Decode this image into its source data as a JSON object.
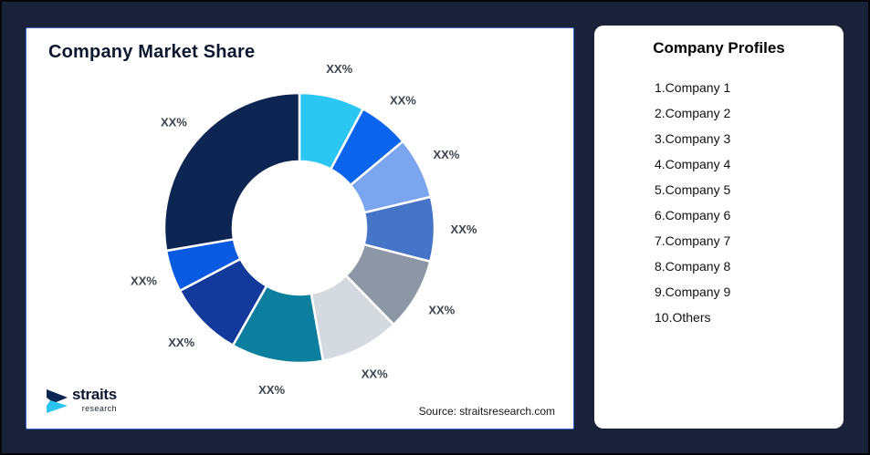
{
  "colors": {
    "background": "#1A2239",
    "outer_border": "#04060C",
    "chart_card_border": "#3B66D1",
    "card_background": "#FFFFFF",
    "title_text": "#0D1830",
    "segment_label_text": "#3C434E",
    "list_text": "#111111",
    "logo_navy": "#0D2552",
    "logo_cyan": "#29C5F0"
  },
  "chart_data": {
    "type": "pie",
    "subtype": "donut",
    "title": "Company Market Share",
    "source": "Source: straitsresearch.com",
    "start_angle_deg": 0,
    "direction": "clockwise",
    "inner_radius_ratio": 0.49,
    "legend_position": "none",
    "segments": [
      {
        "label": "XX%",
        "share_pct": 7.8,
        "color": "#2BC6F2"
      },
      {
        "label": "XX%",
        "share_pct": 6.1,
        "color": "#0A64EC"
      },
      {
        "label": "XX%",
        "share_pct": 7.4,
        "color": "#7CA5F0"
      },
      {
        "label": "XX%",
        "share_pct": 7.7,
        "color": "#4674C6"
      },
      {
        "label": "XX%",
        "share_pct": 8.7,
        "color": "#8D96A4"
      },
      {
        "label": "XX%",
        "share_pct": 9.5,
        "color": "#D5D9E0"
      },
      {
        "label": "XX%",
        "share_pct": 11.0,
        "color": "#0C7F9E"
      },
      {
        "label": "XX%",
        "share_pct": 9.1,
        "color": "#12399B"
      },
      {
        "label": "XX%",
        "share_pct": 5.0,
        "color": "#0B5AE2"
      },
      {
        "label": "XX%",
        "share_pct": 27.7,
        "color": "#0D2552"
      }
    ]
  },
  "profiles": {
    "title": "Company Profiles",
    "items": [
      "1.Company 1",
      "2.Company 2",
      "3.Company 3",
      "4.Company 4",
      "5.Company 5",
      "6.Company 6",
      "7.Company 7",
      "8.Company 8",
      "9.Company 9",
      "10.Others"
    ]
  },
  "logo": {
    "brand": "straits",
    "subtext": "research"
  }
}
